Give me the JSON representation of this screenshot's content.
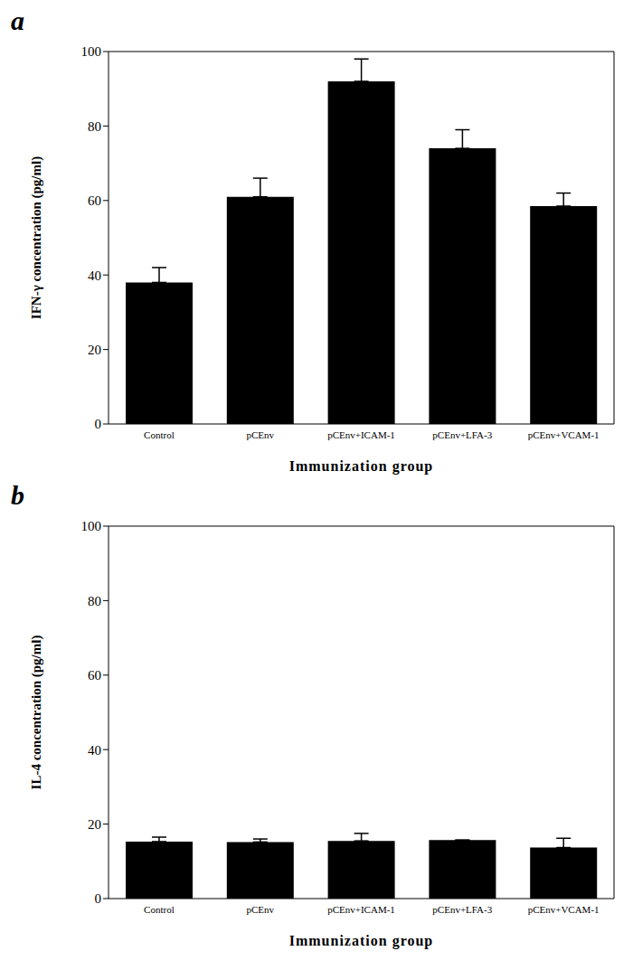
{
  "chart_data": [
    {
      "type": "bar",
      "panel": "a",
      "categories": [
        "Control",
        "pCEnv",
        "pCEnv+ICAM-1",
        "pCEnv+LFA-3",
        "pCEnv+VCAM-1"
      ],
      "values": [
        38,
        61,
        92,
        74,
        58.5
      ],
      "errors": [
        4,
        5,
        6,
        5,
        3.5
      ],
      "color": "#000000",
      "x_label": "Immunization  group",
      "y_label": "IFN-γ concentration (pg/ml)",
      "ylim": [
        0,
        100
      ],
      "yticks": [
        0,
        20,
        40,
        60,
        80,
        100
      ],
      "grid": false
    },
    {
      "type": "bar",
      "panel": "b",
      "categories": [
        "Control",
        "pCEnv",
        "pCEnv+ICAM-1",
        "pCEnv+LFA-3",
        "pCEnv+VCAM-1"
      ],
      "values": [
        15.3,
        15.2,
        15.5,
        15.7,
        13.7
      ],
      "errors": [
        1.2,
        0.8,
        2,
        0,
        2.5
      ],
      "color": "#000000",
      "x_label": "Immunization  group",
      "y_label": "IL-4 concentration (pg/ml)",
      "ylim": [
        0,
        100
      ],
      "yticks": [
        0,
        20,
        40,
        60,
        80,
        100
      ],
      "grid": false
    }
  ]
}
